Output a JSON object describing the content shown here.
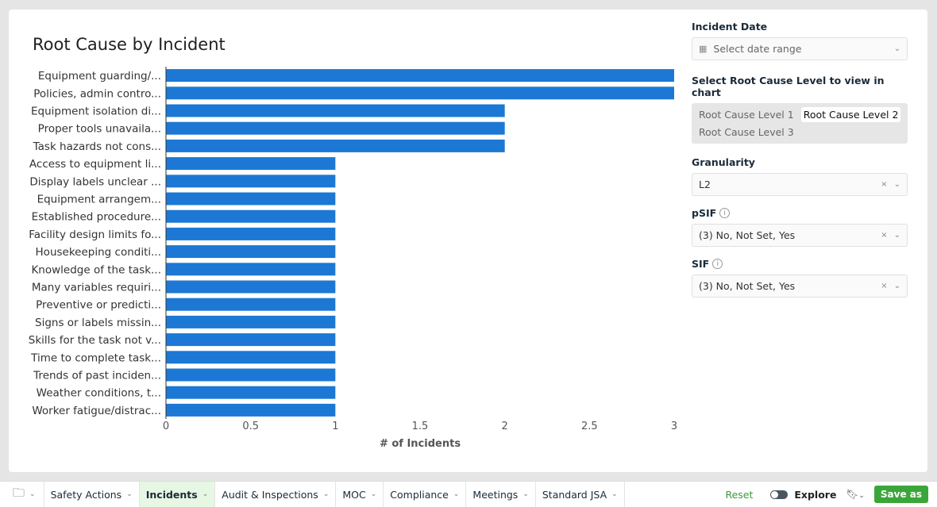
{
  "chart_data": {
    "type": "bar",
    "orientation": "horizontal",
    "title": "Root Cause by Incident",
    "xlabel": "# of Incidents",
    "ylabel": "",
    "xlim": [
      0,
      3
    ],
    "xticks": [
      "0",
      "0.5",
      "1",
      "1.5",
      "2",
      "2.5",
      "3"
    ],
    "color": "#1c78d4",
    "categories": [
      "Equipment guarding/...",
      "Policies, admin contro...",
      "Equipment isolation di...",
      "Proper tools unavaila...",
      "Task hazards not cons...",
      "Access to equipment li...",
      "Display labels unclear ...",
      "Equipment arrangem...",
      "Established procedure...",
      "Facility design limits fo...",
      "Housekeeping conditi...",
      "Knowledge of the task...",
      "Many variables requiri...",
      "Preventive or predicti...",
      "Signs or labels missin...",
      "Skills for the task not v...",
      "Time to complete task...",
      "Trends of past inciden...",
      "Weather conditions, t...",
      "Worker fatigue/distrac..."
    ],
    "values": [
      3,
      3,
      2,
      2,
      2,
      1,
      1,
      1,
      1,
      1,
      1,
      1,
      1,
      1,
      1,
      1,
      1,
      1,
      1,
      1
    ]
  },
  "panel": {
    "incident_date_label": "Incident Date",
    "date_placeholder": "Select date range",
    "level_label": "Select Root Cause Level to view in chart",
    "levels": [
      "Root Cause Level 1",
      "Root Cause Level 2",
      "Root Cause Level 3"
    ],
    "granularity_label": "Granularity",
    "granularity_value": "L2",
    "psif_label": "pSIF",
    "psif_value": "(3) No, Not Set, Yes",
    "sif_label": "SIF",
    "sif_value": "(3) No, Not Set, Yes",
    "info": "i",
    "clear": "×",
    "chev": "⌄"
  },
  "bottom": {
    "tabs": [
      "Safety Actions",
      "Incidents",
      "Audit & Inspections",
      "MOC",
      "Compliance",
      "Meetings",
      "Standard JSA"
    ],
    "reset": "Reset",
    "explore": "Explore",
    "save": "Save as"
  }
}
